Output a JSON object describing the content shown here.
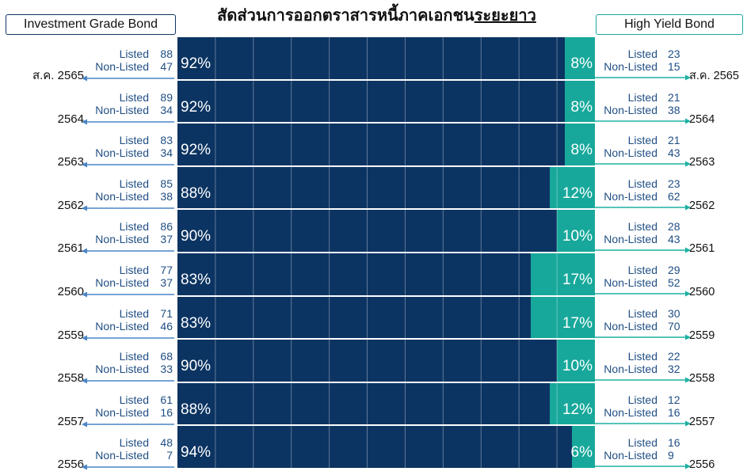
{
  "colors": {
    "investment_grade": "#0c3462",
    "high_yield": "#17a89b",
    "left_arrow": "#4a85c5",
    "right_arrow": "#1fae a2",
    "count_text": "#1f4e84",
    "gridline": "rgba(255,255,255,0.35)"
  },
  "labels": {
    "listed": "Listed",
    "non_listed": "Non-Listed"
  },
  "chart_data": {
    "type": "bar",
    "orientation": "horizontal-stacked",
    "title": "สัดส่วนการออกตราสารหนี้ภาคเอกชน",
    "title_emphasis": "ระยะยาว",
    "unit": "%",
    "categories": [
      "ส.ค. 2565",
      "2564",
      "2563",
      "2562",
      "2561",
      "2560",
      "2559",
      "2558",
      "2557",
      "2556"
    ],
    "series": [
      {
        "name": "Investment Grade Bond",
        "values": [
          92,
          92,
          92,
          88,
          90,
          83,
          83,
          90,
          88,
          94
        ],
        "listed": [
          88,
          89,
          83,
          85,
          86,
          77,
          71,
          68,
          61,
          48
        ],
        "non_listed": [
          47,
          34,
          34,
          38,
          37,
          37,
          46,
          33,
          16,
          7
        ]
      },
      {
        "name": "High Yield Bond",
        "values": [
          8,
          8,
          8,
          12,
          10,
          17,
          17,
          10,
          12,
          6
        ],
        "listed": [
          23,
          21,
          21,
          23,
          28,
          29,
          30,
          22,
          12,
          16
        ],
        "non_listed": [
          15,
          38,
          43,
          62,
          43,
          52,
          70,
          32,
          16,
          9
        ]
      }
    ],
    "xlim": [
      -10,
      100
    ],
    "grid": true,
    "legend": "top-left and top-right boxes"
  }
}
